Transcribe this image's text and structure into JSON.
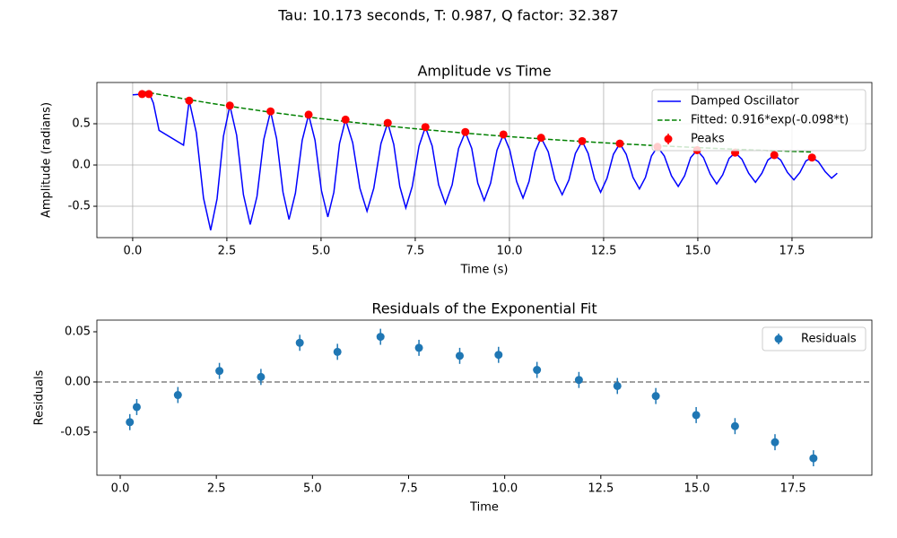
{
  "suptitle": "Tau: 10.173 seconds, T: 0.987, Q factor: 32.387",
  "chart_data": [
    {
      "type": "line",
      "title": "Amplitude vs Time",
      "xlabel": "Time (s)",
      "ylabel": "Amplitude (radians)",
      "xlim": [
        -0.95,
        19.62
      ],
      "ylim": [
        -0.88,
        1.0
      ],
      "xticks": [
        {
          "value": 0,
          "label": "0.0"
        },
        2.5,
        {
          "value": 5,
          "label": "5.0"
        },
        7.5,
        {
          "value": 10,
          "label": "10.0"
        },
        12.5,
        {
          "value": 15,
          "label": "15.0"
        },
        17.5
      ],
      "yticks": [
        -0.5,
        {
          "value": 0,
          "label": "0.0"
        },
        0.5
      ],
      "grid": true,
      "legend": "upper right",
      "series": [
        {
          "name": "Damped Oscillator",
          "color": "#0000ff",
          "style": "solid",
          "x": [
            0,
            0.3,
            0.45,
            0.55,
            0.7,
            1.35,
            1.5,
            1.69,
            1.88,
            2.07,
            2.24,
            2.41,
            2.58,
            2.76,
            2.94,
            3.12,
            3.3,
            3.48,
            3.66,
            3.82,
            3.99,
            4.15,
            4.32,
            4.5,
            4.67,
            4.84,
            5.01,
            5.18,
            5.34,
            5.49,
            5.65,
            5.84,
            6.03,
            6.22,
            6.4,
            6.59,
            6.77,
            6.93,
            7.09,
            7.25,
            7.42,
            7.6,
            7.77,
            7.95,
            8.12,
            8.3,
            8.48,
            8.65,
            8.83,
            9.0,
            9.16,
            9.33,
            9.5,
            9.67,
            9.84,
            10.01,
            10.19,
            10.36,
            10.52,
            10.68,
            10.84,
            11.03,
            11.21,
            11.4,
            11.58,
            11.75,
            11.93,
            12.09,
            12.26,
            12.42,
            12.59,
            12.76,
            12.93,
            13.1,
            13.28,
            13.45,
            13.61,
            13.77,
            13.93,
            14.11,
            14.3,
            14.48,
            14.65,
            14.81,
            14.98,
            15.15,
            15.33,
            15.5,
            15.66,
            15.83,
            15.99,
            16.17,
            16.35,
            16.53,
            16.7,
            16.86,
            17.03,
            17.2,
            17.38,
            17.55,
            17.71,
            17.87,
            18.03,
            18.2,
            18.38,
            18.55,
            18.7
          ],
          "values": [
            0.85,
            0.86,
            0.86,
            0.75,
            0.42,
            0.24,
            0.78,
            0.39,
            -0.4,
            -0.79,
            -0.41,
            0.35,
            0.72,
            0.36,
            -0.36,
            -0.72,
            -0.38,
            0.31,
            0.65,
            0.32,
            -0.33,
            -0.66,
            -0.34,
            0.3,
            0.61,
            0.3,
            -0.31,
            -0.63,
            -0.33,
            0.26,
            0.55,
            0.27,
            -0.28,
            -0.56,
            -0.28,
            0.26,
            0.51,
            0.25,
            -0.26,
            -0.52,
            -0.26,
            0.23,
            0.46,
            0.23,
            -0.24,
            -0.47,
            -0.24,
            0.2,
            0.4,
            0.2,
            -0.22,
            -0.43,
            -0.22,
            0.18,
            0.37,
            0.18,
            -0.2,
            -0.4,
            -0.2,
            0.16,
            0.33,
            0.16,
            -0.18,
            -0.36,
            -0.18,
            0.14,
            0.29,
            0.14,
            -0.17,
            -0.33,
            -0.16,
            0.13,
            0.26,
            0.13,
            -0.15,
            -0.29,
            -0.15,
            0.11,
            0.22,
            0.11,
            -0.13,
            -0.26,
            -0.13,
            0.09,
            0.18,
            0.09,
            -0.11,
            -0.23,
            -0.12,
            0.08,
            0.15,
            0.07,
            -0.1,
            -0.21,
            -0.1,
            0.06,
            0.12,
            0.06,
            -0.09,
            -0.18,
            -0.09,
            0.05,
            0.09,
            0.04,
            -0.08,
            -0.16,
            -0.1
          ]
        },
        {
          "name": "Fitted: 0.916*exp(-0.098*t)",
          "color": "#008000",
          "style": "dashed",
          "x": [
            0.25,
            0.43,
            1.5,
            2.58,
            3.66,
            4.67,
            5.65,
            6.77,
            7.77,
            8.83,
            9.84,
            10.84,
            11.93,
            12.93,
            13.93,
            14.98,
            15.99,
            17.03,
            18.03
          ],
          "values": [
            0.894,
            0.878,
            0.791,
            0.711,
            0.64,
            0.58,
            0.527,
            0.472,
            0.428,
            0.386,
            0.349,
            0.317,
            0.285,
            0.258,
            0.234,
            0.211,
            0.191,
            0.173,
            0.157
          ]
        },
        {
          "name": "Peaks",
          "color": "#ff0000",
          "style": "markers",
          "x": [
            0.25,
            0.43,
            1.5,
            2.58,
            3.66,
            4.67,
            5.65,
            6.77,
            7.77,
            8.83,
            9.84,
            10.84,
            11.93,
            12.93,
            13.93,
            14.98,
            15.99,
            17.03,
            18.03
          ],
          "values": [
            0.86,
            0.86,
            0.78,
            0.72,
            0.65,
            0.61,
            0.55,
            0.51,
            0.46,
            0.4,
            0.37,
            0.33,
            0.29,
            0.26,
            0.22,
            0.18,
            0.15,
            0.12,
            0.09
          ]
        }
      ]
    },
    {
      "type": "scatter",
      "title": "Residuals of the Exponential Fit",
      "xlabel": "Time",
      "ylabel": "Residuals",
      "xlim": [
        -0.607,
        19.55
      ],
      "ylim": [
        -0.0929,
        0.0616
      ],
      "xticks": [
        {
          "value": 0,
          "label": "0.0"
        },
        2.5,
        {
          "value": 5,
          "label": "5.0"
        },
        7.5,
        {
          "value": 10,
          "label": "10.0"
        },
        12.5,
        {
          "value": 15,
          "label": "15.0"
        },
        17.5
      ],
      "yticks": [
        -0.05,
        {
          "value": 0,
          "label": "0.00"
        },
        0.05
      ],
      "grid": false,
      "legend": "upper right",
      "hline": 0,
      "hline_color": "#808080",
      "series": [
        {
          "name": "Residuals",
          "color": "#1f77b4",
          "style": "markers",
          "x": [
            0.25,
            0.43,
            1.5,
            2.58,
            3.66,
            4.67,
            5.65,
            6.77,
            7.77,
            8.83,
            9.84,
            10.84,
            11.93,
            12.93,
            13.93,
            14.98,
            15.99,
            17.03,
            18.03
          ],
          "values": [
            -0.04,
            -0.025,
            -0.013,
            0.011,
            0.005,
            0.039,
            0.03,
            0.045,
            0.034,
            0.026,
            0.027,
            0.012,
            0.002,
            -0.004,
            -0.014,
            -0.033,
            -0.044,
            -0.06,
            -0.076
          ],
          "errors": [
            0.008,
            0.008,
            0.008,
            0.008,
            0.008,
            0.008,
            0.008,
            0.008,
            0.008,
            0.008,
            0.008,
            0.008,
            0.008,
            0.008,
            0.008,
            0.008,
            0.008,
            0.008,
            0.008
          ]
        }
      ]
    }
  ]
}
